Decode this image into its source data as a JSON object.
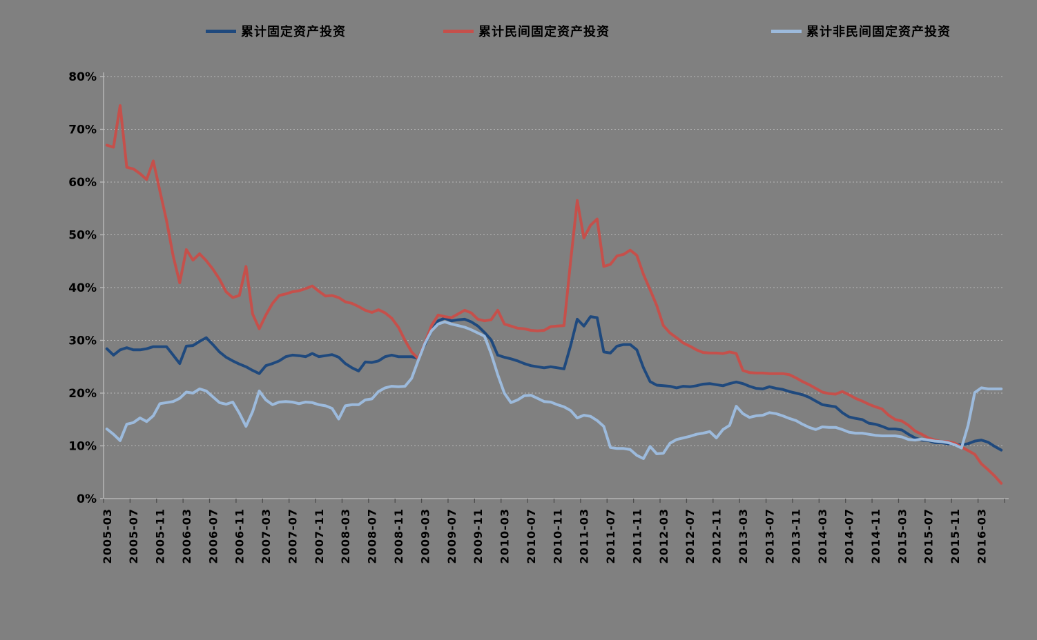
{
  "chart_data": {
    "type": "line",
    "title": "",
    "xlabel": "",
    "ylabel": "",
    "ylim": [
      0,
      80
    ],
    "y_tick_step": 10,
    "y_tick_labels": [
      "0%",
      "10%",
      "20%",
      "30%",
      "40%",
      "50%",
      "60%",
      "70%",
      "80%"
    ],
    "x_label_every": 4,
    "grid": "horizontal-dashed",
    "legend_position": "top",
    "background": "#808080",
    "gridline_color": "rgba(255,255,255,0.45)",
    "axis_color": "#BEBEBE",
    "tick_color": "#4D4D4D",
    "categories": [
      "2005-03",
      "2005-04",
      "2005-05",
      "2005-06",
      "2005-07",
      "2005-08",
      "2005-09",
      "2005-10",
      "2005-11",
      "2005-12",
      "2006-01",
      "2006-02",
      "2006-03",
      "2006-04",
      "2006-05",
      "2006-06",
      "2006-07",
      "2006-08",
      "2006-09",
      "2006-10",
      "2006-11",
      "2006-12",
      "2007-01",
      "2007-02",
      "2007-03",
      "2007-04",
      "2007-05",
      "2007-06",
      "2007-07",
      "2007-08",
      "2007-09",
      "2007-10",
      "2007-11",
      "2007-12",
      "2008-01",
      "2008-02",
      "2008-03",
      "2008-04",
      "2008-05",
      "2008-06",
      "2008-07",
      "2008-08",
      "2008-09",
      "2008-10",
      "2008-11",
      "2008-12",
      "2009-01",
      "2009-02",
      "2009-03",
      "2009-04",
      "2009-05",
      "2009-06",
      "2009-07",
      "2009-08",
      "2009-09",
      "2009-10",
      "2009-11",
      "2009-12",
      "2010-01",
      "2010-02",
      "2010-03",
      "2010-04",
      "2010-05",
      "2010-06",
      "2010-07",
      "2010-08",
      "2010-09",
      "2010-10",
      "2010-11",
      "2010-12",
      "2011-01",
      "2011-02",
      "2011-03",
      "2011-04",
      "2011-05",
      "2011-06",
      "2011-07",
      "2011-08",
      "2011-09",
      "2011-10",
      "2011-11",
      "2011-12",
      "2012-01",
      "2012-02",
      "2012-03",
      "2012-04",
      "2012-05",
      "2012-06",
      "2012-07",
      "2012-08",
      "2012-09",
      "2012-10",
      "2012-11",
      "2012-12",
      "2013-01",
      "2013-02",
      "2013-03",
      "2013-04",
      "2013-05",
      "2013-06",
      "2013-07",
      "2013-08",
      "2013-09",
      "2013-10",
      "2013-11",
      "2013-12",
      "2014-01",
      "2014-02",
      "2014-03",
      "2014-04",
      "2014-05",
      "2014-06",
      "2014-07",
      "2014-08",
      "2014-09",
      "2014-10",
      "2014-11",
      "2014-12",
      "2015-01",
      "2015-02",
      "2015-03",
      "2015-04",
      "2015-05",
      "2015-06",
      "2015-07",
      "2015-08",
      "2015-09",
      "2015-10",
      "2015-11",
      "2015-12",
      "2016-01",
      "2016-02",
      "2016-03",
      "2016-04",
      "2016-05",
      "2016-06"
    ],
    "series": [
      {
        "name": "累计固定资产投资",
        "color": "#1F497D",
        "values": [
          28.4,
          27.2,
          28.2,
          28.6,
          28.2,
          28.2,
          28.4,
          28.8,
          28.8,
          28.8,
          27.2,
          25.6,
          28.9,
          29.0,
          29.8,
          30.5,
          29.2,
          27.8,
          26.8,
          26.1,
          25.5,
          25.0,
          24.3,
          23.7,
          25.2,
          25.6,
          26.1,
          26.9,
          27.2,
          27.1,
          26.9,
          27.5,
          26.9,
          27.1,
          27.3,
          26.8,
          25.6,
          24.8,
          24.2,
          25.9,
          25.8,
          26.1,
          26.9,
          27.2,
          26.9,
          26.9,
          26.9,
          26.6,
          29.2,
          31.8,
          33.7,
          34.2,
          33.7,
          33.9,
          34.0,
          33.5,
          32.7,
          31.5,
          30.1,
          27.2,
          26.8,
          26.5,
          26.1,
          25.6,
          25.2,
          25.0,
          24.8,
          25.0,
          24.8,
          24.6,
          29.0,
          34.0,
          32.7,
          34.5,
          34.3,
          27.8,
          27.6,
          28.9,
          29.2,
          29.2,
          28.2,
          24.8,
          22.2,
          21.5,
          21.4,
          21.3,
          21.0,
          21.3,
          21.2,
          21.4,
          21.7,
          21.8,
          21.6,
          21.4,
          21.8,
          22.1,
          21.8,
          21.3,
          20.9,
          20.8,
          21.2,
          20.9,
          20.7,
          20.3,
          20.0,
          19.7,
          19.2,
          18.5,
          17.8,
          17.6,
          17.4,
          16.3,
          15.5,
          15.2,
          15.0,
          14.3,
          14.1,
          13.7,
          13.2,
          13.2,
          13.0,
          12.2,
          11.5,
          11.1,
          11.0,
          10.6,
          10.6,
          10.4,
          10.3,
          10.2,
          10.4,
          10.9,
          11.1,
          10.7,
          9.9,
          9.2
        ]
      },
      {
        "name": "累计民间固定资产投资",
        "color": "#C5504B",
        "values": [
          67.0,
          66.6,
          74.5,
          62.8,
          62.5,
          61.6,
          60.5,
          64.0,
          58.3,
          52.7,
          46.0,
          40.9,
          47.2,
          45.2,
          46.4,
          45.1,
          43.5,
          41.6,
          39.2,
          38.1,
          38.5,
          44.0,
          35.0,
          32.2,
          34.8,
          37.0,
          38.5,
          38.8,
          39.2,
          39.4,
          39.8,
          40.3,
          39.3,
          38.4,
          38.5,
          38.1,
          37.3,
          37.0,
          36.4,
          35.7,
          35.3,
          35.8,
          35.2,
          34.2,
          32.5,
          30.0,
          27.8,
          26.5,
          29.5,
          32.8,
          34.8,
          34.5,
          34.3,
          35.0,
          35.7,
          35.2,
          34.0,
          33.7,
          33.9,
          35.7,
          33.1,
          32.7,
          32.3,
          32.2,
          31.9,
          31.8,
          31.9,
          32.6,
          32.7,
          32.8,
          45.0,
          56.5,
          49.4,
          51.8,
          53.0,
          44.0,
          44.4,
          46.0,
          46.3,
          47.1,
          46.1,
          42.5,
          39.6,
          36.6,
          32.8,
          31.4,
          30.5,
          29.5,
          28.9,
          28.2,
          27.7,
          27.6,
          27.6,
          27.5,
          27.8,
          27.5,
          24.3,
          23.9,
          23.8,
          23.8,
          23.7,
          23.7,
          23.7,
          23.5,
          22.9,
          22.2,
          21.6,
          20.9,
          20.2,
          19.9,
          19.8,
          20.3,
          19.7,
          19.0,
          18.5,
          17.9,
          17.4,
          17.0,
          15.8,
          15.0,
          14.7,
          13.9,
          12.8,
          12.2,
          11.5,
          11.1,
          10.8,
          10.8,
          10.5,
          9.8,
          9.1,
          8.4,
          6.6,
          5.5,
          4.3,
          2.9
        ]
      },
      {
        "name": "累计非民间固定资产投资",
        "color": "#9CBADC",
        "values": [
          13.2,
          12.2,
          11.0,
          14.1,
          14.4,
          15.3,
          14.6,
          15.7,
          18.0,
          18.2,
          18.4,
          19.0,
          20.2,
          20.0,
          20.8,
          20.4,
          19.3,
          18.2,
          17.9,
          18.3,
          16.2,
          13.7,
          16.5,
          20.4,
          18.7,
          17.8,
          18.3,
          18.4,
          18.3,
          18.0,
          18.3,
          18.2,
          17.8,
          17.6,
          17.1,
          15.1,
          17.6,
          17.8,
          17.8,
          18.7,
          18.9,
          20.3,
          21.0,
          21.3,
          21.2,
          21.3,
          22.8,
          26.2,
          29.4,
          31.8,
          33.1,
          33.5,
          33.1,
          32.8,
          32.5,
          32.0,
          31.4,
          30.8,
          27.5,
          23.5,
          20.0,
          18.2,
          18.7,
          19.5,
          19.6,
          19.0,
          18.4,
          18.3,
          17.8,
          17.4,
          16.7,
          15.3,
          15.8,
          15.6,
          14.8,
          13.7,
          9.7,
          9.5,
          9.5,
          9.3,
          8.2,
          7.6,
          9.9,
          8.5,
          8.6,
          10.5,
          11.2,
          11.5,
          11.8,
          12.2,
          12.4,
          12.7,
          11.5,
          13.1,
          13.9,
          17.5,
          16.1,
          15.4,
          15.7,
          15.8,
          16.3,
          16.1,
          15.7,
          15.2,
          14.8,
          14.1,
          13.5,
          13.1,
          13.6,
          13.5,
          13.5,
          13.1,
          12.6,
          12.4,
          12.4,
          12.2,
          12.0,
          11.9,
          11.9,
          11.9,
          11.7,
          11.2,
          11.1,
          11.3,
          11.1,
          10.9,
          10.8,
          10.6,
          10.2,
          9.6,
          13.9,
          20.1,
          21.0,
          20.8,
          20.8,
          20.8
        ]
      }
    ]
  }
}
